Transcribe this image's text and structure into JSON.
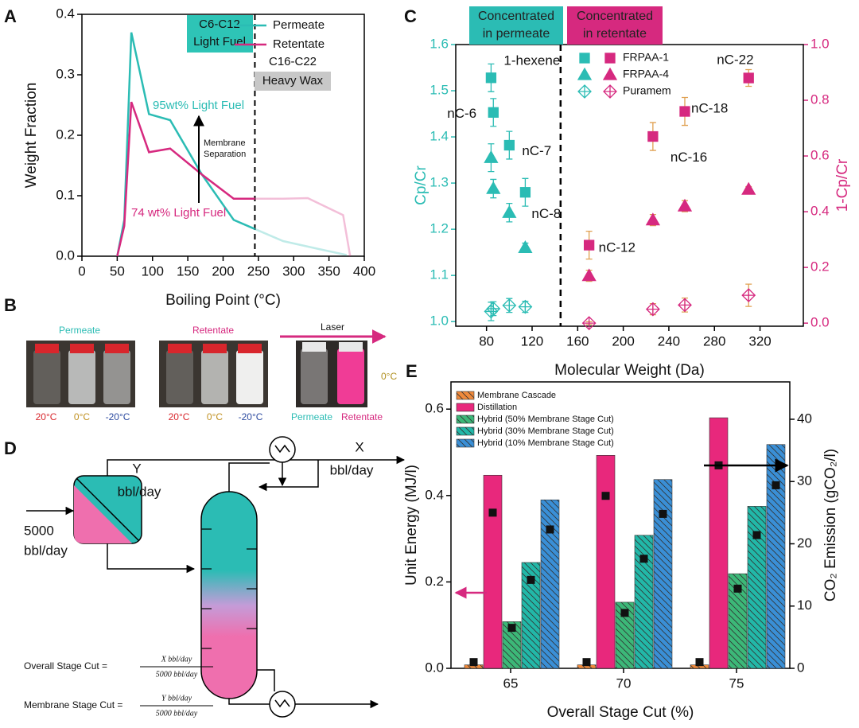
{
  "chart_data": [
    {
      "type": "line",
      "panel": "A",
      "xlabel": "Boiling Point (°C)",
      "ylabel": "Weight Fraction",
      "xlim": [
        0,
        400
      ],
      "xticks": [
        0,
        50,
        100,
        150,
        200,
        250,
        300,
        350,
        400
      ],
      "ylim": [
        0,
        0.4
      ],
      "yticks": [
        {
          "value": 0,
          "label": "0.0"
        },
        0.1,
        0.2,
        0.3,
        0.4
      ],
      "divider": 245,
      "legend": "upper right",
      "series": [
        {
          "name": "Permeate",
          "color": "#2bbcb4",
          "x": [
            50,
            60,
            70,
            95,
            125,
            170,
            215,
            245,
            285,
            335,
            375
          ],
          "values": [
            0,
            0.06,
            0.37,
            0.235,
            0.225,
            0.135,
            0.06,
            0.045,
            0.025,
            0.012,
            0.002
          ]
        },
        {
          "name": "Retentate",
          "color": "#d6297f",
          "x": [
            50,
            60,
            70,
            95,
            125,
            170,
            215,
            245,
            285,
            320,
            370,
            380
          ],
          "values": [
            0,
            0.05,
            0.255,
            0.172,
            0.178,
            0.135,
            0.095,
            0.095,
            0.095,
            0.096,
            0.068,
            0
          ]
        }
      ],
      "annotations": {
        "light_region": [
          "C6-C12",
          "Light Fuel"
        ],
        "heavy_region": [
          "C16-C22",
          "Heavy Wax"
        ],
        "permeate_note": "95wt% Light Fuel",
        "retentate_note": "74 wt% Light Fuel",
        "arrow_note": [
          "Membrane",
          "Separation"
        ]
      }
    },
    {
      "type": "scatter",
      "panel": "C",
      "xlabel": "Molecular Weight (Da)",
      "ylabel": "Cp/Cr",
      "y2label": "1-Cp/Cr",
      "ycolor": "#2bbcb4",
      "y2color": "#d6297f",
      "errorbar_color2": "#e0a050",
      "xlim": [
        53,
        358
      ],
      "xticks": [
        80,
        120,
        160,
        200,
        240,
        280,
        320
      ],
      "ylim": [
        0.99,
        1.6
      ],
      "yticks": [
        {
          "value": 1,
          "label": "1.0"
        },
        1.1,
        1.2,
        1.3,
        1.4,
        1.5,
        1.6
      ],
      "y2lim": [
        -0.011,
        1.0
      ],
      "y2ticks": [
        {
          "value": 0,
          "label": "0.0"
        },
        0.2,
        0.4,
        0.6,
        0.8,
        {
          "value": 1,
          "label": "1.0"
        }
      ],
      "divider": 145,
      "legend": "upper center",
      "regions": [
        [
          "Concentrated",
          "in permeate"
        ],
        [
          "Concentrated",
          "in retentate"
        ]
      ],
      "series": [
        {
          "name": "FRPAA-1",
          "marker": "square",
          "color": "#2bbcb4",
          "color2": "#d6297f",
          "x": [
            84,
            86,
            100,
            114
          ],
          "values": [
            1.528,
            1.453,
            1.382,
            1.28
          ],
          "errors": [
            0.03,
            0.03,
            0.03,
            0.03
          ],
          "x2": [
            170,
            226,
            254,
            310
          ],
          "values2": [
            0.28,
            0.67,
            0.76,
            0.88
          ],
          "errors2": [
            0.05,
            0.05,
            0.05,
            0.03
          ],
          "labels": [
            "1-hexene",
            "nC-6",
            "nC-7",
            "nC-8"
          ],
          "labels2": [
            "nC-12",
            "nC-16",
            "nC-18",
            "nC-22"
          ]
        },
        {
          "name": "FRPAA-4",
          "marker": "triangle",
          "color": "#2bbcb4",
          "color2": "#d6297f",
          "x": [
            84,
            86,
            100,
            114
          ],
          "values": [
            1.355,
            1.288,
            1.236,
            1.16
          ],
          "errors": [
            0.03,
            0.02,
            0.02,
            0.01
          ],
          "x2": [
            170,
            226,
            254,
            310
          ],
          "values2": [
            0.17,
            0.37,
            0.42,
            0.48
          ],
          "errors2": [
            0.02,
            0.02,
            0.02,
            0.01
          ]
        },
        {
          "name": "Puramem",
          "marker": "diamond",
          "color": "#2bbcb4",
          "color2": "#d6297f",
          "x": [
            84,
            86,
            100,
            114
          ],
          "values": [
            1.022,
            1.028,
            1.035,
            1.032
          ],
          "errors": [
            0.02,
            0.015,
            0.015,
            0.012
          ],
          "x2": [
            170,
            226,
            254,
            310
          ],
          "values2": [
            0,
            0.05,
            0.065,
            0.1
          ],
          "errors2": [
            0.005,
            0.02,
            0.025,
            0.04
          ]
        }
      ]
    },
    {
      "type": "bar",
      "panel": "E",
      "xlabel": "Overall Stage Cut (%)",
      "ylabel": "Unit Energy (MJ/l)",
      "y2label": "CO₂ Emission (gCO₂/l)",
      "categories": [
        "65",
        "70",
        "75"
      ],
      "ylim": [
        0,
        0.663
      ],
      "yticks": [
        {
          "value": 0,
          "label": "0.0"
        },
        0.2,
        0.4,
        0.6
      ],
      "y2lim": [
        0,
        46
      ],
      "y2ticks": [
        0,
        10,
        20,
        30,
        40
      ],
      "marker2_color": "#111",
      "legend": "upper left",
      "series": [
        {
          "name": "Membrane Cascade",
          "color": "#f08a3c",
          "hatch": true,
          "values": [
            0.008,
            0.008,
            0.008
          ],
          "values2": [
            1,
            1,
            1
          ]
        },
        {
          "name": "Distillation",
          "color": "#e8287c",
          "hatch": false,
          "values": [
            0.447,
            0.493,
            0.58
          ],
          "values2": [
            25,
            27.7,
            32.6
          ]
        },
        {
          "name": "Hybrid (50% Membrane Stage Cut)",
          "color": "#3cb878",
          "hatch": true,
          "values": [
            0.108,
            0.153,
            0.219
          ],
          "values2": [
            6.5,
            8.9,
            12.8
          ]
        },
        {
          "name": "Hybrid (30% Membrane Stage Cut)",
          "color": "#22b8a8",
          "hatch": true,
          "values": [
            0.245,
            0.308,
            0.375
          ],
          "values2": [
            14.2,
            17.6,
            21.4
          ]
        },
        {
          "name": "Hybrid (10% Membrane Stage Cut)",
          "color": "#3a8fd6",
          "hatch": true,
          "values": [
            0.39,
            0.437,
            0.518
          ],
          "values2": [
            22.3,
            24.8,
            29.4
          ]
        }
      ]
    }
  ],
  "photos": {
    "panel": "B",
    "permeate_title": "Permeate",
    "retentate_title": "Retentate",
    "laser": "Laser",
    "permeate_temps": [
      "20°C",
      "0°C",
      "-20°C"
    ],
    "retentate_temps": [
      "20°C",
      "0°C",
      "-20°C"
    ],
    "laser_temp": "0°C",
    "laser_samples": [
      "Permeate",
      "Retentate"
    ]
  },
  "diagram": {
    "panel": "D",
    "membrane_product": [
      "Y",
      "bbl/day"
    ],
    "distillate": [
      "X",
      "bbl/day"
    ],
    "feed": [
      "5000",
      "bbl/day"
    ],
    "formulas": [
      {
        "name": "Overall Stage Cut =",
        "numerator": "X bbl/day",
        "denominator": "5000 bbl/day"
      },
      {
        "name": "Membrane Stage Cut =",
        "numerator": "Y bbl/day",
        "denominator": "5000 bbl/day"
      }
    ]
  }
}
